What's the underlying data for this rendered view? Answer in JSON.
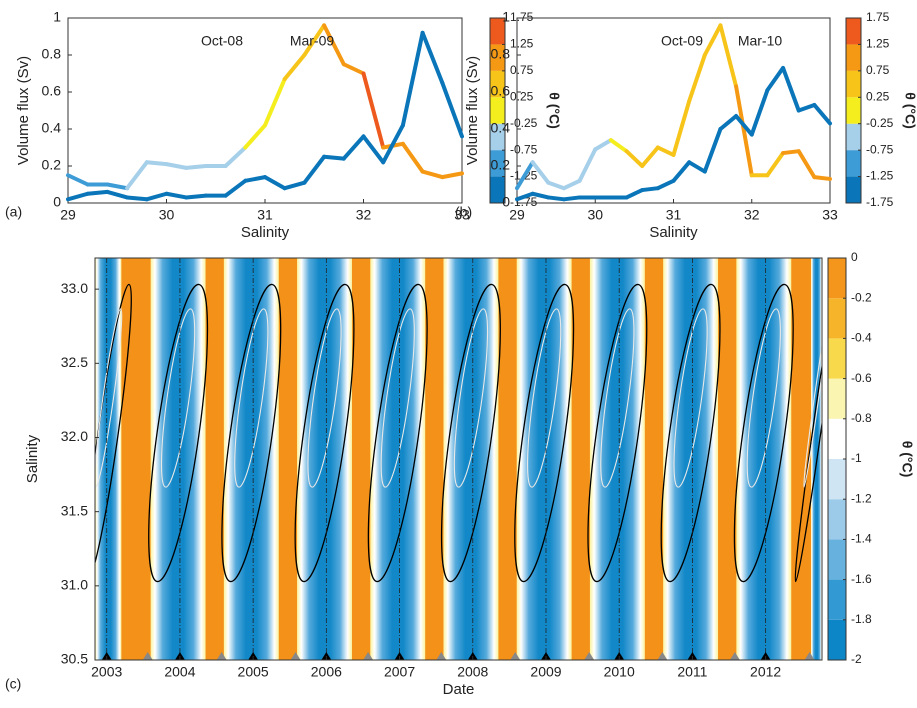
{
  "chart_data": [
    {
      "type": "line",
      "panel": "(a)",
      "xlabel": "Salinity",
      "ylabel": "Volume flux (Sv)",
      "x": [
        29,
        29.2,
        29.4,
        29.6,
        29.8,
        30,
        30.2,
        30.4,
        30.6,
        30.8,
        31,
        31.2,
        31.4,
        31.6,
        31.8,
        32,
        32.2,
        32.4,
        32.6,
        32.8,
        33
      ],
      "xlim": [
        29,
        33
      ],
      "xticks": [
        29,
        30,
        31,
        32,
        33
      ],
      "ylim": [
        0,
        1
      ],
      "yticks": [
        0,
        0.2,
        0.4,
        0.6,
        0.8,
        1
      ],
      "annotations": [
        "Oct-08",
        "Mar-09"
      ],
      "series": [
        {
          "values": [
            0.15,
            0.1,
            0.1,
            0.08,
            0.22,
            0.21,
            0.19,
            0.2,
            0.2,
            0.3,
            0.42,
            0.67,
            0.8,
            0.96,
            0.75,
            0.7,
            0.3,
            0.32,
            0.17,
            0.14,
            0.16
          ],
          "theta": [
            -0.8,
            -0.8,
            -0.8,
            -0.8,
            -0.5,
            -0.5,
            -0.5,
            -0.5,
            -0.5,
            -0.4,
            0.1,
            0.2,
            0.6,
            0.8,
            1.0,
            1.3,
            1.4,
            1.0,
            1.0,
            1.0,
            1.0
          ]
        },
        {
          "values": [
            0.02,
            0.05,
            0.06,
            0.03,
            0.02,
            0.05,
            0.03,
            0.04,
            0.04,
            0.12,
            0.14,
            0.08,
            0.11,
            0.25,
            0.24,
            0.36,
            0.22,
            0.42,
            0.92,
            0.65,
            0.36
          ],
          "theta": [
            -1.5,
            -1.5,
            -1.5,
            -1.5,
            -1.5,
            -1.5,
            -1.5,
            -1.5,
            -1.5,
            -1.5,
            -1.5,
            -1.5,
            -1.5,
            -1.5,
            -1.5,
            -1.5,
            -1.5,
            -1.5,
            -1.5,
            -1.5,
            -1.5
          ]
        }
      ],
      "colorbar": {
        "label": "θ (°C)",
        "lim": [
          -1.75,
          1.75
        ],
        "ticks": [
          -1.75,
          -1.25,
          -0.75,
          -0.25,
          0.25,
          0.75,
          1.25,
          1.75
        ],
        "colors": [
          "#0a76b9",
          "#3d9bd5",
          "#a6cfea",
          "#f5ee1e",
          "#f7c41a",
          "#f59914",
          "#ee5a1e"
        ]
      }
    },
    {
      "type": "line",
      "panel": "(b)",
      "xlabel": "Salinity",
      "ylabel": "Volume flux (Sv)",
      "x": [
        29,
        29.2,
        29.4,
        29.6,
        29.8,
        30,
        30.2,
        30.4,
        30.6,
        30.8,
        31,
        31.2,
        31.4,
        31.6,
        31.8,
        32,
        32.2,
        32.4,
        32.6,
        32.8,
        33
      ],
      "xlim": [
        29,
        33
      ],
      "xticks": [
        29,
        30,
        31,
        32,
        33
      ],
      "ylim": [
        0,
        1
      ],
      "yticks": [
        0,
        0.2,
        0.4,
        0.6,
        0.8,
        1
      ],
      "annotations": [
        "Oct-09",
        "Mar-10"
      ],
      "series": [
        {
          "values": [
            0.08,
            0.22,
            0.11,
            0.08,
            0.12,
            0.29,
            0.34,
            0.28,
            0.2,
            0.3,
            0.26,
            0.55,
            0.8,
            0.96,
            0.63,
            0.15,
            0.15,
            0.27,
            0.28,
            0.14,
            0.13
          ],
          "theta": [
            -0.8,
            -0.8,
            -0.5,
            -0.5,
            -0.5,
            -0.5,
            -0.5,
            0.1,
            0.6,
            0.6,
            0.6,
            0.6,
            0.6,
            0.6,
            0.6,
            1.0,
            0.3,
            0.9,
            1.3,
            1.0,
            1.0
          ]
        },
        {
          "values": [
            0.02,
            0.05,
            0.03,
            0.02,
            0.03,
            0.03,
            0.03,
            0.03,
            0.07,
            0.08,
            0.12,
            0.22,
            0.17,
            0.4,
            0.47,
            0.37,
            0.61,
            0.73,
            0.5,
            0.53,
            0.43
          ],
          "theta": [
            -1.5,
            -1.5,
            -1.5,
            -1.5,
            -1.5,
            -1.5,
            -1.5,
            -1.5,
            -1.5,
            -1.5,
            -1.5,
            -1.5,
            -1.5,
            -1.5,
            -1.5,
            -1.5,
            -1.5,
            -1.5,
            -1.5,
            -1.5,
            -1.5
          ]
        }
      ],
      "colorbar": {
        "label": "θ (°C)",
        "lim": [
          -1.75,
          1.75
        ],
        "ticks": [
          -1.75,
          -1.25,
          -0.75,
          -0.25,
          0.25,
          0.75,
          1.25,
          1.75
        ],
        "colors": [
          "#0a76b9",
          "#3d9bd5",
          "#a6cfea",
          "#f5ee1e",
          "#f7c41a",
          "#f59914",
          "#ee5a1e"
        ]
      }
    },
    {
      "type": "contour",
      "panel": "(c)",
      "xlabel": "Date",
      "ylabel": "Salinity",
      "xlim": [
        2002.84,
        2012.77
      ],
      "xticks": [
        2003,
        2004,
        2005,
        2006,
        2007,
        2008,
        2009,
        2010,
        2011,
        2012
      ],
      "ylim": [
        30.5,
        33.21
      ],
      "yticks": [
        30.5,
        {
          "value": 31,
          "label": "31.0"
        },
        31.5,
        {
          "value": 32,
          "label": "32.0"
        },
        32.5,
        {
          "value": 33,
          "label": "33.0"
        }
      ],
      "warm_color": "#f39119",
      "cold_color": "#1288c8",
      "bands": [
        [
          2002.84,
          2003.2
        ],
        [
          2003.6,
          2004.35
        ],
        [
          2004.6,
          2005.35
        ],
        [
          2005.6,
          2006.35
        ],
        [
          2006.6,
          2007.35
        ],
        [
          2007.6,
          2008.35
        ],
        [
          2008.6,
          2009.35
        ],
        [
          2009.6,
          2010.35
        ],
        [
          2010.6,
          2011.35
        ],
        [
          2011.6,
          2012.35
        ],
        [
          2012.62,
          2012.77
        ]
      ],
      "markers_black": [
        2003.0,
        2004.0,
        2005.0,
        2006.0,
        2007.0,
        2008.0,
        2009.0,
        2010.0,
        2011.0,
        2012.0
      ],
      "markers_gray": [
        2003.56,
        2004.57,
        2005.58,
        2006.57,
        2007.57,
        2008.58,
        2009.59,
        2010.59,
        2011.58,
        2012.6
      ],
      "colorbar": {
        "label": "θ (°C)",
        "lim": [
          -2,
          0
        ],
        "ticks": [
          0,
          -0.2,
          -0.4,
          -0.6,
          -0.8,
          -1,
          -1.2,
          -1.4,
          -1.6,
          -1.8,
          -2
        ],
        "colors": [
          "#0c86c7",
          "#3399d3",
          "#66b1dd",
          "#9ccae9",
          "#d0e5f4",
          "#ffffff",
          "#fbf5b2",
          "#f8d94c",
          "#f5b42a",
          "#f3961b"
        ]
      }
    }
  ]
}
